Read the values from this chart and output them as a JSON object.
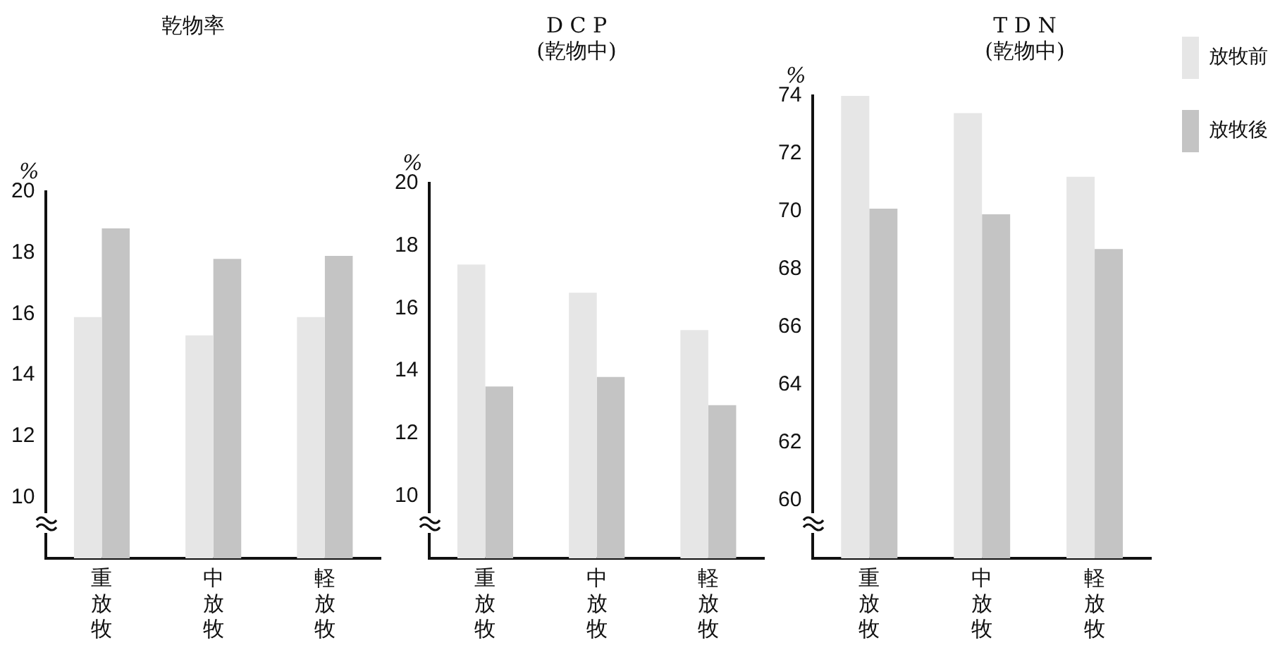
{
  "chart_data": [
    {
      "type": "bar",
      "title": "乾物率",
      "ylabel": "%",
      "categories": [
        "重放牧",
        "中放牧",
        "軽放牧"
      ],
      "series": [
        {
          "color": "#e6e6e6",
          "values": [
            15.9,
            15.3,
            15.9
          ]
        },
        {
          "color": "#c4c4c4",
          "values": [
            18.8,
            17.8,
            17.9
          ]
        }
      ],
      "ylim": [
        8,
        20
      ],
      "yticks": [
        10,
        12,
        14,
        16,
        18,
        20
      ],
      "grid": false,
      "legend": false
    },
    {
      "type": "bar",
      "title": "D C P",
      "subtitle": "(乾物中)",
      "ylabel": "%",
      "categories": [
        "重放牧",
        "中放牧",
        "軽放牧"
      ],
      "series": [
        {
          "color": "#e6e6e6",
          "values": [
            17.4,
            16.5,
            15.3
          ]
        },
        {
          "color": "#c4c4c4",
          "values": [
            13.5,
            13.8,
            12.9
          ]
        }
      ],
      "ylim": [
        8,
        20
      ],
      "yticks": [
        10,
        12,
        14,
        16,
        18,
        20
      ],
      "grid": false,
      "legend": false
    },
    {
      "type": "bar",
      "title": "T D N",
      "subtitle": "(乾物中)",
      "ylabel": "%",
      "categories": [
        "重放牧",
        "中放牧",
        "軽放牧"
      ],
      "series": [
        {
          "name": "放牧前",
          "color": "#e6e6e6",
          "values": [
            74.0,
            73.4,
            71.2
          ]
        },
        {
          "name": "放牧後",
          "color": "#c4c4c4",
          "values": [
            70.1,
            69.9,
            68.7
          ]
        }
      ],
      "ylim": [
        58,
        74
      ],
      "yticks": [
        60,
        62,
        64,
        66,
        68,
        70,
        72,
        74
      ],
      "grid": false,
      "legend": "right"
    }
  ]
}
